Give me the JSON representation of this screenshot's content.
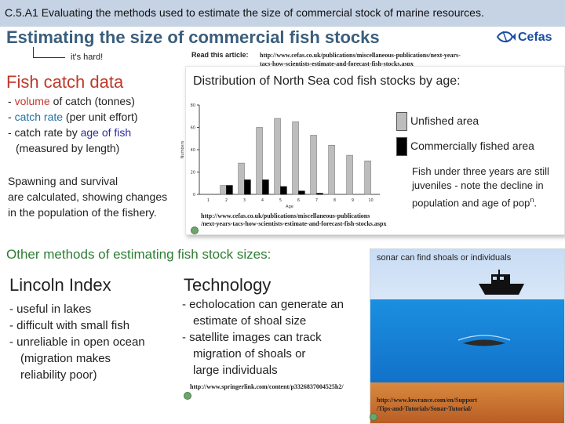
{
  "header": {
    "slide_heading": "C.5.A1 Evaluating the methods used to estimate the size of commercial stock of marine  resources."
  },
  "title": {
    "main": "Estimating the size of commercial fish stocks",
    "note": "it's hard!"
  },
  "logo": {
    "text": "Cefas",
    "icon": "fish-logo-icon"
  },
  "read_article": {
    "label": "Read this article:",
    "url_line1": "http://www.cefas.co.uk/publications/miscellaneous-publications/next-years-",
    "url_line2": "tacs-how-scientists-estimate-and-forecast-fish-stocks.aspx"
  },
  "catch": {
    "title": "Fish catch data",
    "line1_prefix": "- ",
    "line1_highlight": "volume",
    "line1_suffix": " of catch (tonnes)",
    "line2_prefix": "- ",
    "line2_highlight": "catch rate",
    "line2_suffix": " (per unit effort)",
    "line3_prefix": "- catch rate by ",
    "line3_highlight": "age of fish",
    "line4": "  (measured by length)",
    "spawning_line1": "Spawning and survival",
    "spawning_line2": "are calculated, showing changes",
    "spawning_line3": "in the population of the fishery."
  },
  "chart_data": {
    "type": "bar",
    "title": "Distribution of North Sea cod fish stocks by age:",
    "xlabel": "Age",
    "ylabel": "Numbers",
    "categories": [
      "1",
      "2",
      "3",
      "4",
      "5",
      "6",
      "7",
      "8",
      "9",
      "10"
    ],
    "ylim": [
      0,
      80
    ],
    "yticks": [
      0,
      20,
      40,
      60,
      80
    ],
    "series": [
      {
        "name": "Unfished area",
        "color": "#bdbdbd",
        "values": [
          0,
          8,
          28,
          60,
          68,
          65,
          53,
          44,
          35,
          30
        ]
      },
      {
        "name": "Commercially fished area",
        "color": "#000000",
        "values": [
          0,
          8,
          13,
          13,
          7,
          3,
          1,
          0,
          0,
          0
        ]
      }
    ],
    "legend_position": "right",
    "grid": false
  },
  "chart_note": {
    "line1": "Fish under three years are still",
    "line2": "juveniles - note the decline in",
    "line3": "population and age of pop",
    "line3_sup": "n",
    "line3_end": "."
  },
  "chart_source": {
    "line1": "http://www.cefas.co.uk/publications/miscellaneous-publications",
    "line2": "/next-years-tacs-how-scientists-estimate-and-forecast-fish-stocks.aspx"
  },
  "other": {
    "title": "Other methods of estimating fish stock sizes:"
  },
  "lincoln": {
    "title": "Lincoln Index",
    "items": [
      "- useful in lakes",
      "- difficult with small fish",
      "- unreliable in open ocean",
      "  (migration makes",
      "  reliability poor)"
    ]
  },
  "technology": {
    "title": "Technology",
    "items": [
      "- echolocation can generate an",
      "  estimate of shoal size",
      "- satellite images can track",
      "  migration of shoals or",
      "  large individuals"
    ],
    "link": "http://www.springerlink.com/content/p3326837004525h2/"
  },
  "sonar": {
    "caption": "sonar can find shoals or individuals",
    "url_line1": "http://www.lowrance.com/en/Support",
    "url_line2": "/Tips-and-Tutorials/Sonar-Tutorial/",
    "colors": {
      "sky": "#c8dcf4",
      "sea": "#1b8fe0",
      "seabed": "#c9702f"
    }
  }
}
